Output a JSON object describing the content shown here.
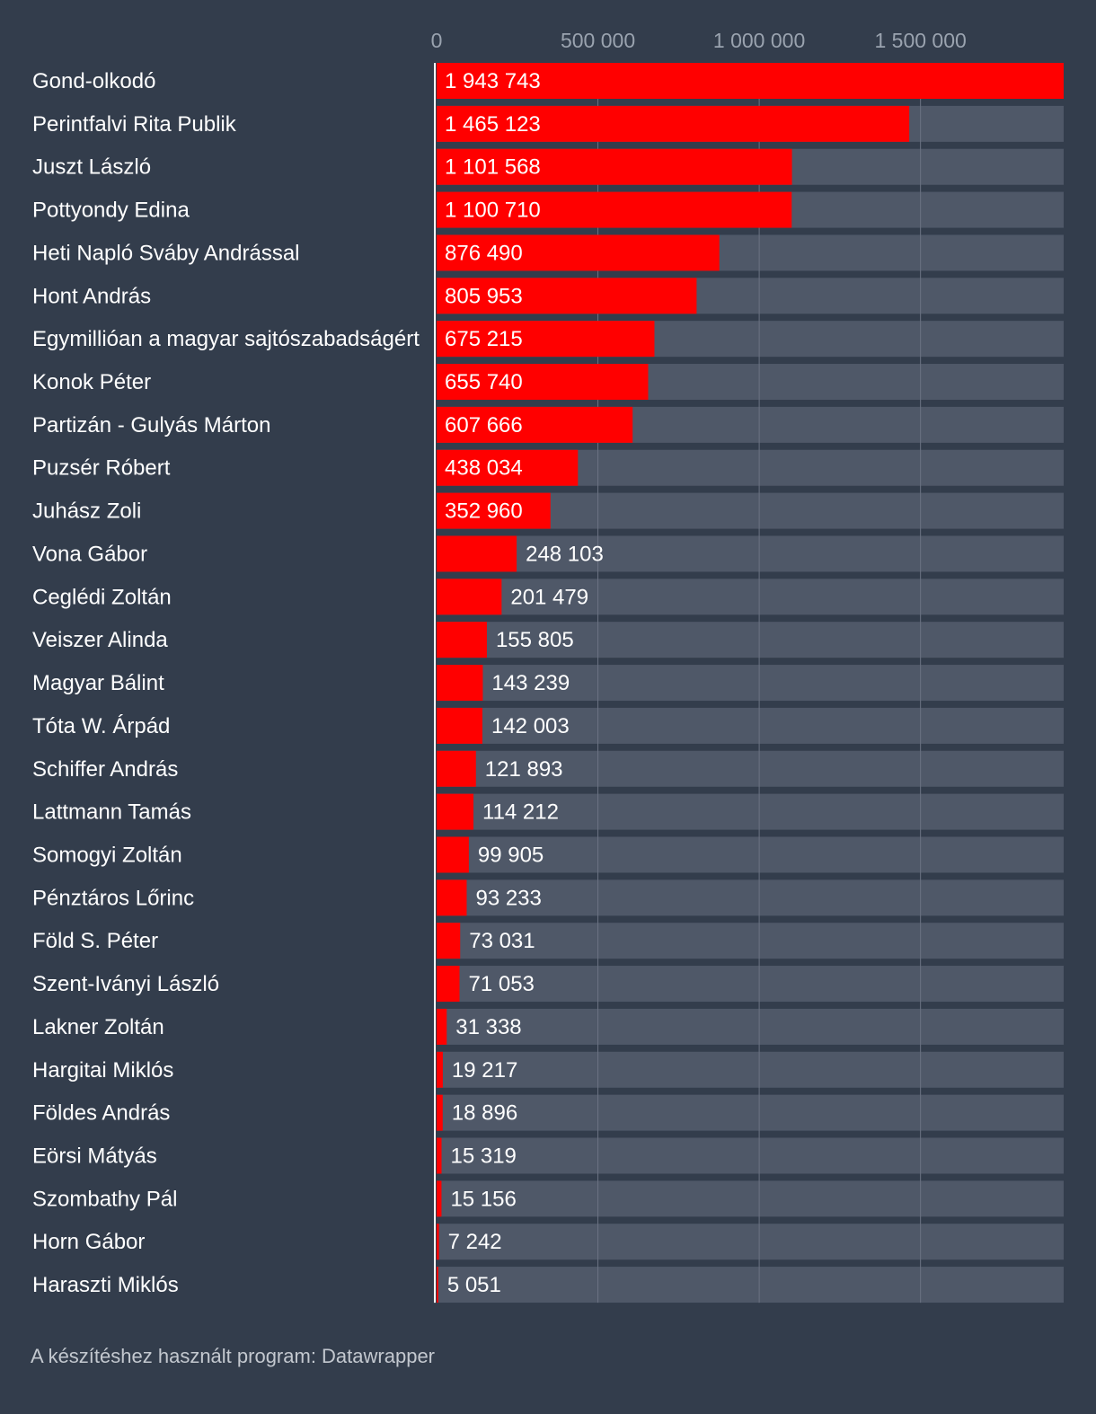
{
  "colors": {
    "background": "#333d4c",
    "track": "#4f5868",
    "bar": "#ff0000",
    "gridline": "#6b7383",
    "baseline": "#ffffff",
    "text": "#ffffff",
    "tick_text": "#9aa3af",
    "footer_text": "#c3c8cf"
  },
  "footer": {
    "text": "A készítéshez használt program: Datawrapper"
  },
  "chart_data": {
    "type": "bar",
    "orientation": "horizontal",
    "title": "",
    "xlabel": "",
    "ylabel": "",
    "xlim": [
      0,
      1943743
    ],
    "grid": true,
    "ticks": [
      {
        "value": 0,
        "label": "0"
      },
      {
        "value": 500000,
        "label": "500 000"
      },
      {
        "value": 1000000,
        "label": "1 000 000"
      },
      {
        "value": 1500000,
        "label": "1 500 000"
      }
    ],
    "categories": [
      "Gond-olkodó",
      "Perintfalvi Rita Publik",
      "Juszt László",
      "Pottyondy Edina",
      "Heti Napló Sváby Andrással",
      "Hont András",
      "Egymillióan a magyar sajtószabadságért",
      "Konok Péter",
      "Partizán - Gulyás Márton",
      "Puzsér Róbert",
      "Juhász Zoli",
      "Vona Gábor",
      "Ceglédi Zoltán",
      "Veiszer Alinda",
      "Magyar Bálint",
      "Tóta W. Árpád",
      "Schiffer András",
      "Lattmann Tamás",
      "Somogyi Zoltán",
      "Pénztáros Lőrinc",
      "Föld S. Péter",
      "Szent-Iványi László",
      "Lakner Zoltán",
      "Hargitai Miklós",
      "Földes András",
      "Eörsi Mátyás",
      "Szombathy Pál",
      "Horn Gábor",
      "Haraszti Miklós"
    ],
    "values": [
      1943743,
      1465123,
      1101568,
      1100710,
      876490,
      805953,
      675215,
      655740,
      607666,
      438034,
      352960,
      248103,
      201479,
      155805,
      143239,
      142003,
      121893,
      114212,
      99905,
      93233,
      73031,
      71053,
      31338,
      19217,
      18896,
      15319,
      15156,
      7242,
      5051
    ],
    "value_labels": [
      "1 943 743",
      "1 465 123",
      "1 101 568",
      "1 100 710",
      "876 490",
      "805 953",
      "675 215",
      "655 740",
      "607 666",
      "438 034",
      "352 960",
      "248 103",
      "201 479",
      "155 805",
      "143 239",
      "142 003",
      "121 893",
      "114 212",
      "99 905",
      "93 233",
      "73 031",
      "71 053",
      "31 338",
      "19 217",
      "18 896",
      "15 319",
      "15 156",
      "7 242",
      "5 051"
    ]
  }
}
